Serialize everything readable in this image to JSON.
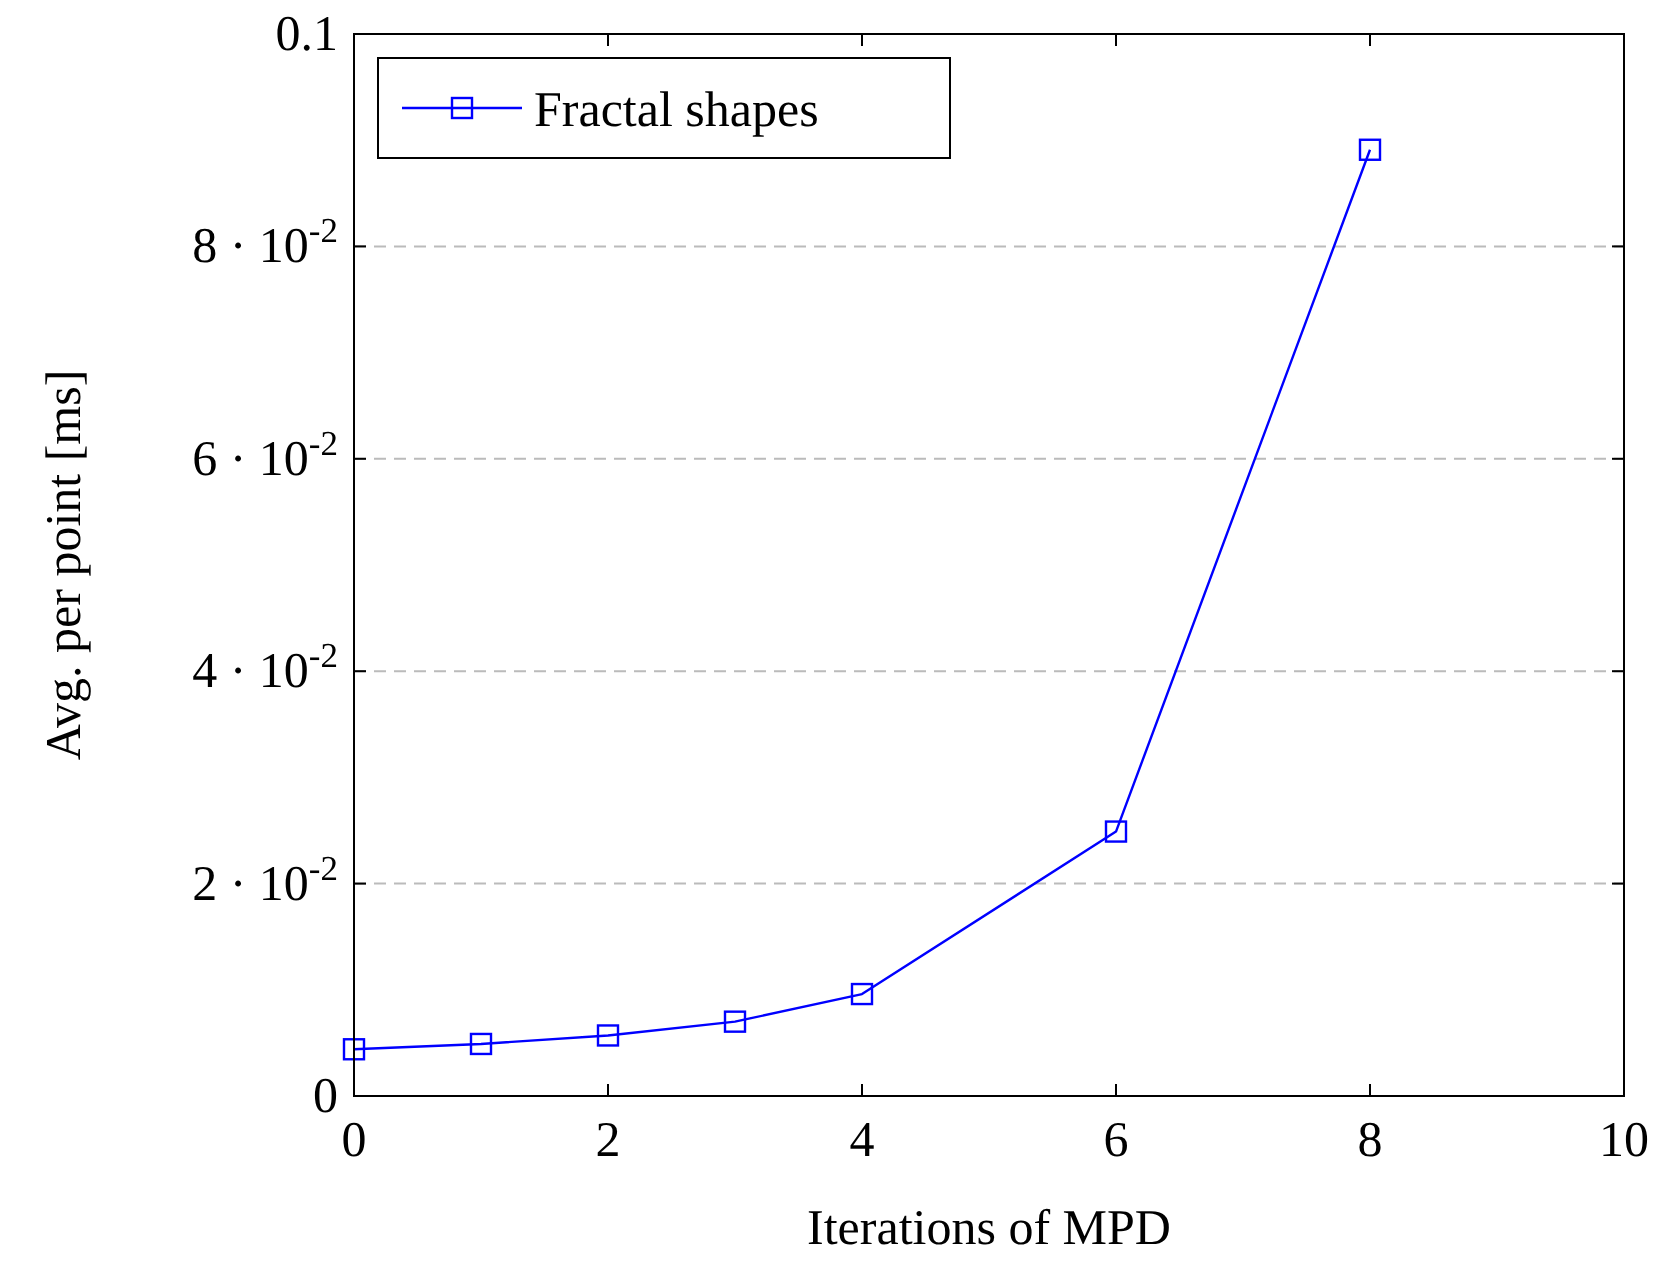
{
  "chart_data": {
    "type": "line",
    "xlabel": "Iterations of MPD",
    "ylabel": "Avg. per point [ms]",
    "x": [
      0,
      1,
      2,
      3,
      4,
      6,
      8
    ],
    "series": [
      {
        "name": "Fractal shapes",
        "color": "#0000ff",
        "values": [
          0.0044,
          0.0049,
          0.0057,
          0.007,
          0.0096,
          0.0249,
          0.0891
        ]
      }
    ],
    "xlim": [
      0,
      10
    ],
    "xticks": [
      0,
      2,
      4,
      6,
      8,
      10
    ],
    "ylim": [
      0,
      0.1
    ],
    "yticks": [
      0,
      {
        "value": 0.02,
        "label": "2 · 10$^{-2}$"
      },
      {
        "value": 0.04,
        "label": "4 · 10$^{-2}$"
      },
      {
        "value": 0.06,
        "label": "6 · 10$^{-2}$"
      },
      {
        "value": 0.08,
        "label": "8 · 10$^{-2}$"
      },
      0.1
    ],
    "grid": "y",
    "legend": "top left",
    "marker": "square",
    "line_style": "solid"
  }
}
